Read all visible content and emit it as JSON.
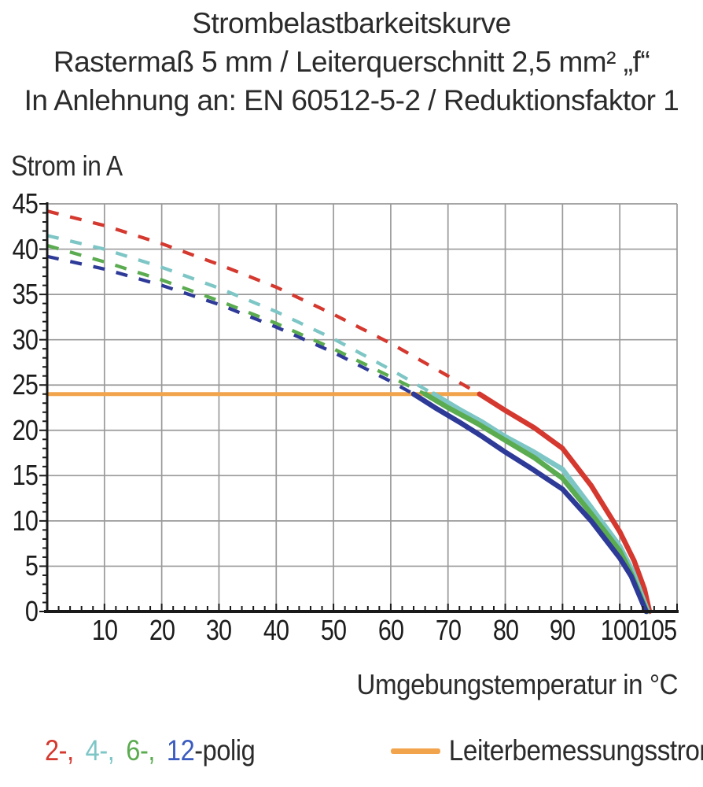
{
  "title": {
    "line1": "Strombelastbarkeitskurve",
    "line2": "Rastermaß 5 mm / Leiterquerschnitt 2,5 mm² „f“",
    "line3": "In Anlehnung an: EN 60512-5-2 / Reduktionsfaktor 1"
  },
  "y_axis": {
    "label": "Strom in A"
  },
  "x_axis": {
    "label": "Umgebungstemperatur in °C"
  },
  "legend": {
    "poles": [
      {
        "label": "2-,",
        "color_key": "red"
      },
      {
        "label": "4-,",
        "color_key": "cyan"
      },
      {
        "label": "6-,",
        "color_key": "green"
      },
      {
        "label": "12",
        "color_key": "legend_blue"
      }
    ],
    "poles_suffix": "-polig",
    "rated_current_label": "Leiterbemessungsstrom"
  },
  "colors": {
    "red": "#D4382E",
    "cyan": "#7EC6C6",
    "green": "#5BAB50",
    "blue": "#2E3A97",
    "legend_blue": "#3B5BC0",
    "orange": "#F2A44C",
    "grid": "#9A9A9A",
    "axis": "#1A1A1A",
    "text": "#2B2B2B"
  },
  "chart_data": {
    "type": "line",
    "title": "Strombelastbarkeitskurve",
    "subtitle": "Rastermaß 5 mm / Leiterquerschnitt 2,5 mm² „f“ — In Anlehnung an: EN 60512-5-2 / Reduktionsfaktor 1",
    "xlabel": "Umgebungstemperatur in °C",
    "ylabel": "Strom in A",
    "xlim": [
      0,
      110
    ],
    "ylim": [
      0,
      45
    ],
    "x_ticks": [
      10,
      20,
      30,
      40,
      50,
      60,
      70,
      80,
      90,
      100,
      105
    ],
    "y_ticks": [
      0,
      5,
      10,
      15,
      20,
      25,
      30,
      35,
      40,
      45
    ],
    "x_major_step": 10,
    "x_minor_step": 2,
    "y_major_step": 5,
    "y_minor_step": 1,
    "grid": true,
    "legend_position": "bottom",
    "rated_current": {
      "name": "Leiterbemessungsstrom",
      "value_a": 24,
      "x_start": 0,
      "x_end": 75.5,
      "color": "orange"
    },
    "series": [
      {
        "id": "2-polig",
        "name": "2-polig",
        "color": "red",
        "dashed_points": [
          [
            0,
            44.2
          ],
          [
            10,
            42.6
          ],
          [
            20,
            40.6
          ],
          [
            30,
            38.3
          ],
          [
            40,
            35.8
          ],
          [
            50,
            32.8
          ],
          [
            60,
            29.6
          ],
          [
            70,
            26.0
          ],
          [
            75.5,
            24
          ]
        ],
        "solid_points": [
          [
            75.5,
            24
          ],
          [
            80,
            22.2
          ],
          [
            85,
            20.3
          ],
          [
            90,
            18.0
          ],
          [
            95,
            13.9
          ],
          [
            100,
            8.8
          ],
          [
            102.5,
            5.6
          ],
          [
            104.3,
            2.5
          ],
          [
            105.2,
            0
          ]
        ]
      },
      {
        "id": "4-polig",
        "name": "4-polig",
        "color": "cyan",
        "dashed_points": [
          [
            0,
            41.5
          ],
          [
            10,
            40.0
          ],
          [
            20,
            38.0
          ],
          [
            30,
            35.7
          ],
          [
            40,
            33.1
          ],
          [
            50,
            30.1
          ],
          [
            60,
            26.7
          ],
          [
            67.5,
            24
          ]
        ],
        "solid_points": [
          [
            67.5,
            24
          ],
          [
            72,
            22.3
          ],
          [
            76,
            20.9
          ],
          [
            80,
            19.3
          ],
          [
            85,
            17.6
          ],
          [
            90,
            15.7
          ],
          [
            95,
            11.5
          ],
          [
            100,
            7.2
          ],
          [
            102.3,
            4.4
          ],
          [
            104.9,
            0
          ]
        ]
      },
      {
        "id": "6-polig",
        "name": "6-polig",
        "color": "green",
        "dashed_points": [
          [
            0,
            40.4
          ],
          [
            10,
            38.6
          ],
          [
            20,
            36.6
          ],
          [
            30,
            34.3
          ],
          [
            40,
            31.8
          ],
          [
            50,
            29.0
          ],
          [
            60,
            25.9
          ],
          [
            66,
            24
          ]
        ],
        "solid_points": [
          [
            66,
            24
          ],
          [
            70,
            22.5
          ],
          [
            75,
            20.8
          ],
          [
            80,
            18.9
          ],
          [
            85,
            17.0
          ],
          [
            90,
            14.7
          ],
          [
            95,
            10.8
          ],
          [
            100,
            6.7
          ],
          [
            102,
            4.2
          ],
          [
            104.7,
            0
          ]
        ]
      },
      {
        "id": "12-polig",
        "name": "12-polig",
        "color": "blue",
        "dashed_points": [
          [
            0,
            39.2
          ],
          [
            10,
            37.8
          ],
          [
            20,
            36.0
          ],
          [
            30,
            33.9
          ],
          [
            40,
            31.4
          ],
          [
            50,
            28.6
          ],
          [
            60,
            25.4
          ],
          [
            64,
            24
          ]
        ],
        "solid_points": [
          [
            64,
            24
          ],
          [
            68,
            22.4
          ],
          [
            72,
            20.9
          ],
          [
            76,
            19.3
          ],
          [
            80,
            17.6
          ],
          [
            85,
            15.6
          ],
          [
            90,
            13.5
          ],
          [
            95,
            10.0
          ],
          [
            100,
            5.9
          ],
          [
            102,
            3.9
          ],
          [
            104.6,
            0
          ]
        ]
      }
    ]
  }
}
